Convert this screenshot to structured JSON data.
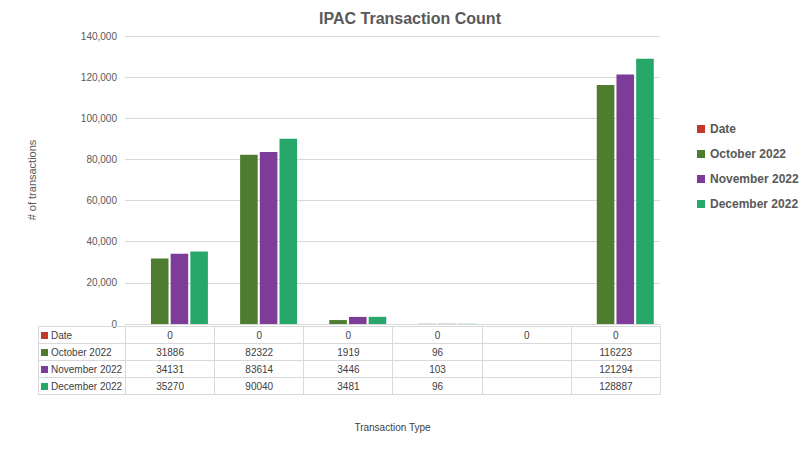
{
  "chart_data": {
    "type": "bar",
    "title": "IPAC Transaction Count",
    "xlabel": "Transaction Type",
    "ylabel": "# of transactions",
    "categories": [
      null,
      null,
      null,
      null,
      null,
      null
    ],
    "series": [
      {
        "name": "Date",
        "color": "#c0392b",
        "values": [
          0,
          0,
          0,
          0,
          0,
          0
        ]
      },
      {
        "name": "October 2022",
        "color": "#4e7d2f",
        "values": [
          31886,
          82322,
          1919,
          96,
          null,
          116223
        ]
      },
      {
        "name": "November 2022",
        "color": "#7d3c98",
        "values": [
          34131,
          83614,
          3446,
          103,
          null,
          121294
        ]
      },
      {
        "name": "December 2022",
        "color": "#27a86a",
        "values": [
          35270,
          90040,
          3481,
          96,
          null,
          128887
        ]
      }
    ],
    "ylim": [
      0,
      140000
    ],
    "yticks": [
      0,
      20000,
      40000,
      60000,
      80000,
      100000,
      120000,
      140000
    ],
    "grid": true,
    "legend": "right",
    "tick_labels": "y"
  }
}
